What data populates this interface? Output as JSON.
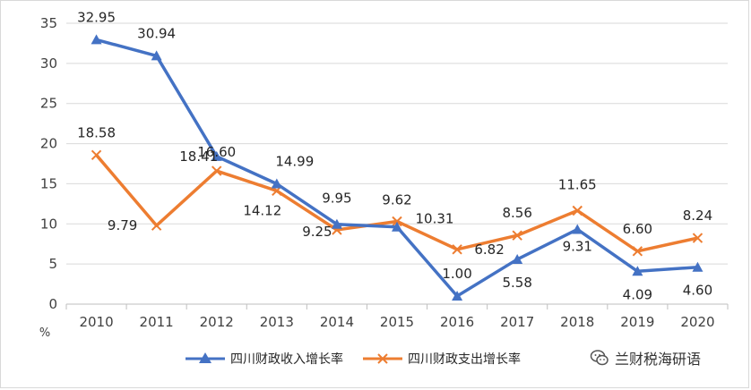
{
  "chart_data": {
    "type": "line",
    "categories": [
      "2010",
      "2011",
      "2012",
      "2013",
      "2014",
      "2015",
      "2016",
      "2017",
      "2018",
      "2019",
      "2020"
    ],
    "ylim": [
      0,
      35
    ],
    "yticks": [
      "0",
      "5",
      "10",
      "15",
      "20",
      "25",
      "30",
      "35"
    ],
    "ylabel": "%",
    "grid": true,
    "legend_position": "bottom",
    "series": [
      {
        "name": "四川财政收入增长率",
        "color": "#4472c4",
        "marker": "triangle",
        "values": [
          32.95,
          30.94,
          18.41,
          14.99,
          9.95,
          9.62,
          1.0,
          5.58,
          9.31,
          4.09,
          4.6
        ],
        "labels": [
          "32.95",
          "30.94",
          "18.41",
          "14.99",
          "9.95",
          "9.62",
          "1.00",
          "5.58",
          "9.31",
          "4.09",
          "4.60"
        ]
      },
      {
        "name": "四川财政支出增长率",
        "color": "#ed7d31",
        "marker": "x",
        "values": [
          18.58,
          9.79,
          16.6,
          14.12,
          9.25,
          10.31,
          6.82,
          8.56,
          11.65,
          6.6,
          8.24
        ],
        "labels": [
          "18.58",
          "9.79",
          "16.60",
          "14.12",
          "9.25",
          "10.31",
          "6.82",
          "8.56",
          "11.65",
          "6.60",
          "8.24"
        ]
      }
    ]
  },
  "watermark": {
    "text": "兰财税海研语",
    "icon": "wechat-icon"
  }
}
